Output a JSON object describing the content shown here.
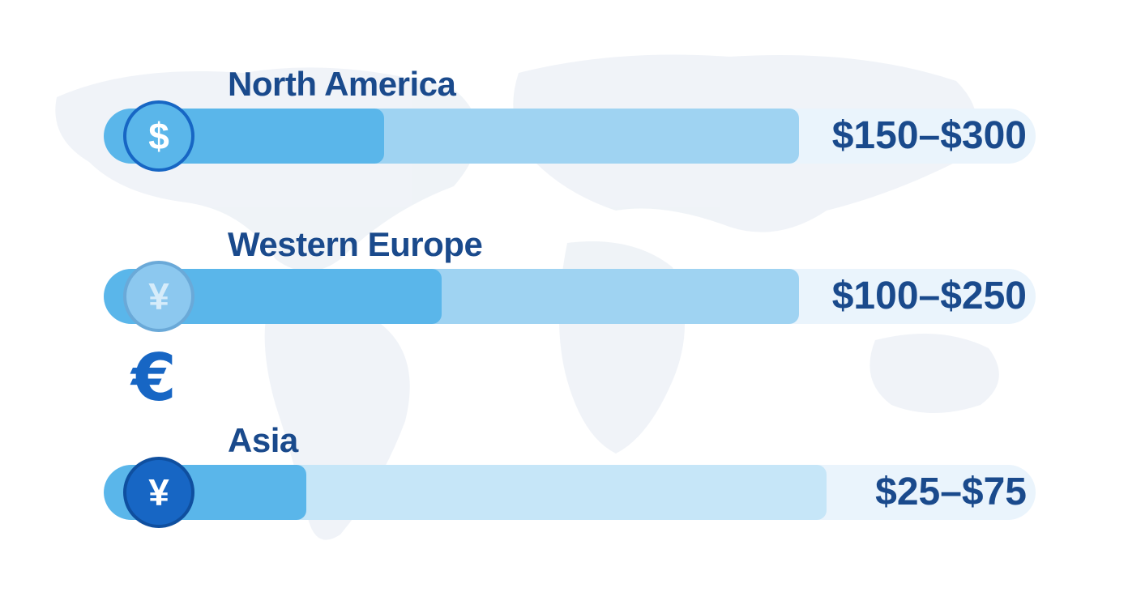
{
  "chart_data": {
    "type": "bar",
    "categories": [
      "North America",
      "Western Europe",
      "Asia"
    ],
    "ranges": [
      {
        "region": "North America",
        "low": 150,
        "high": 300,
        "label": "$150–$300"
      },
      {
        "region": "Western Europe",
        "low": 100,
        "high": 250,
        "label": "$100–$250"
      },
      {
        "region": "Asia",
        "low": 25,
        "high": 75,
        "label": "$25–$75"
      }
    ],
    "range_max": 300
  },
  "rows": [
    {
      "label": "North America",
      "range": "$150–$300",
      "icon": "dollar-icon",
      "glyph": "$"
    },
    {
      "label": "Western Europe",
      "range": "$100–$250",
      "icon": "yen-icon",
      "glyph": "¥"
    },
    {
      "label": "Asia",
      "range": "$25–$75",
      "icon": "yen-icon",
      "glyph": "¥"
    }
  ],
  "extra_icon": {
    "icon": "euro-icon",
    "glyph": "€"
  },
  "colors": {
    "label": "#1a4a8c",
    "track_bg": "#eaf4fc",
    "bar_light_1": "#9fd3f2",
    "bar_light_3": "#c6e6f8",
    "bar_dark": "#5ab6ea",
    "coin_dark": "#1766c4",
    "coin_light": "#8cc8ef"
  }
}
